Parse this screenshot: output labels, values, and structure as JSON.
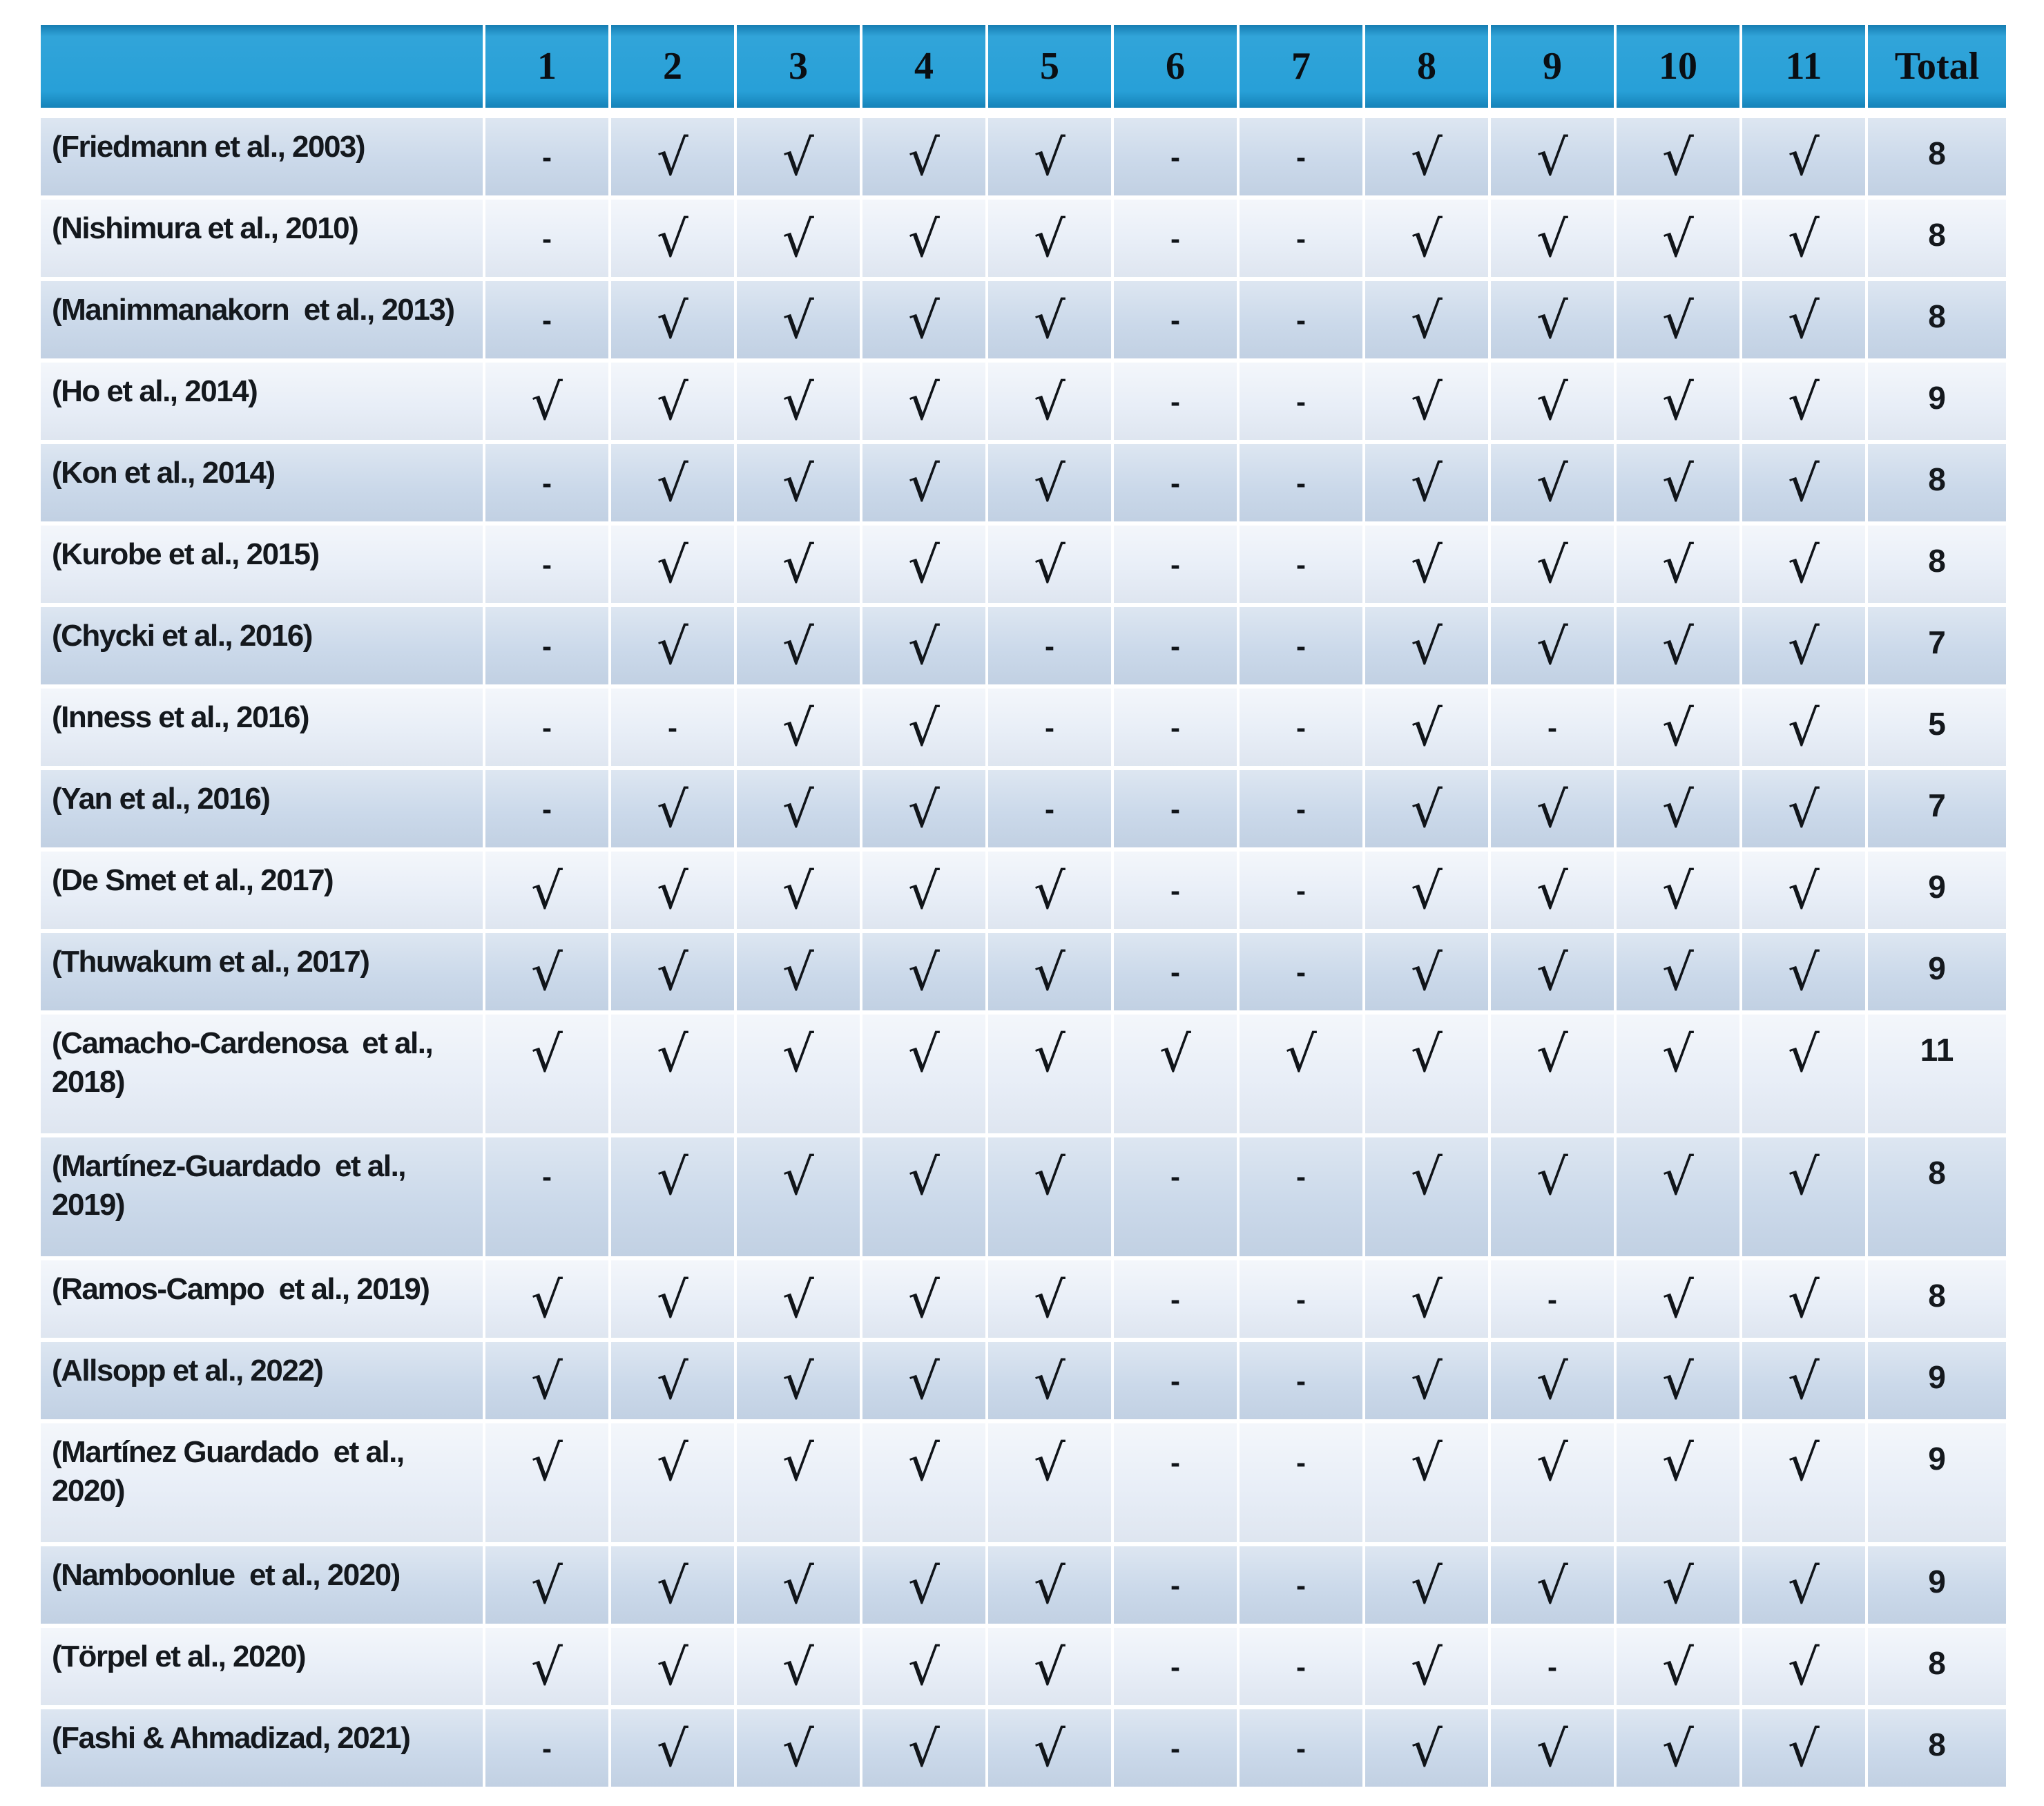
{
  "header": {
    "columns": [
      "",
      "1",
      "2",
      "3",
      "4",
      "5",
      "6",
      "7",
      "8",
      "9",
      "10",
      "11",
      "Total"
    ]
  },
  "symbols": {
    "check": "√",
    "dash": "-"
  },
  "colors": {
    "header_blue": "#1a9ad5",
    "row_dark": "#cbd9ea",
    "row_light": "#e8eef7",
    "grid_white": "#ffffff",
    "ink": "#14181d"
  },
  "rows": [
    {
      "label": "(Friedmann et al., 2003)",
      "cells": [
        "-",
        "√",
        "√",
        "√",
        "√",
        "-",
        "-",
        "√",
        "√",
        "√",
        "√"
      ],
      "total": "8"
    },
    {
      "label": "(Nishimura et al., 2010)",
      "cells": [
        "-",
        "√",
        "√",
        "√",
        "√",
        "-",
        "-",
        "√",
        "√",
        "√",
        "√"
      ],
      "total": "8"
    },
    {
      "label": "(Manimmanakorn  et al., 2013)",
      "cells": [
        "-",
        "√",
        "√",
        "√",
        "√",
        "-",
        "-",
        "√",
        "√",
        "√",
        "√"
      ],
      "total": "8"
    },
    {
      "label": "(Ho et al., 2014)",
      "cells": [
        "√",
        "√",
        "√",
        "√",
        "√",
        "-",
        "-",
        "√",
        "√",
        "√",
        "√"
      ],
      "total": "9"
    },
    {
      "label": "(Kon et al., 2014)",
      "cells": [
        "-",
        "√",
        "√",
        "√",
        "√",
        "-",
        "-",
        "√",
        "√",
        "√",
        "√"
      ],
      "total": "8"
    },
    {
      "label": "(Kurobe et al., 2015)",
      "cells": [
        "-",
        "√",
        "√",
        "√",
        "√",
        "-",
        "-",
        "√",
        "√",
        "√",
        "√"
      ],
      "total": "8"
    },
    {
      "label": "(Chycki et al., 2016)",
      "cells": [
        "-",
        "√",
        "√",
        "√",
        "-",
        "-",
        "-",
        "√",
        "√",
        "√",
        "√"
      ],
      "total": "7"
    },
    {
      "label": "(Inness et al., 2016)",
      "cells": [
        "-",
        "-",
        "√",
        "√",
        "-",
        "-",
        "-",
        "√",
        "-",
        "√",
        "√"
      ],
      "total": "5"
    },
    {
      "label": "(Yan et al., 2016)",
      "cells": [
        "-",
        "√",
        "√",
        "√",
        "-",
        "-",
        "-",
        "√",
        "√",
        "√",
        "√"
      ],
      "total": "7"
    },
    {
      "label": "(De Smet et al., 2017)",
      "cells": [
        "√",
        "√",
        "√",
        "√",
        "√",
        "-",
        "-",
        "√",
        "√",
        "√",
        "√"
      ],
      "total": "9"
    },
    {
      "label": "(Thuwakum et al., 2017)",
      "cells": [
        "√",
        "√",
        "√",
        "√",
        "√",
        "-",
        "-",
        "√",
        "√",
        "√",
        "√"
      ],
      "total": "9"
    },
    {
      "label": "(Camacho-Cardenosa  et al., 2018)",
      "cells": [
        "√",
        "√",
        "√",
        "√",
        "√",
        "√",
        "√",
        "√",
        "√",
        "√",
        "√"
      ],
      "total": "11"
    },
    {
      "label": "(Martínez-Guardado  et al., 2019)",
      "cells": [
        "-",
        "√",
        "√",
        "√",
        "√",
        "-",
        "-",
        "√",
        "√",
        "√",
        "√"
      ],
      "total": "8"
    },
    {
      "label": "(Ramos-Campo  et al., 2019)",
      "cells": [
        "√",
        "√",
        "√",
        "√",
        "√",
        "-",
        "-",
        "√",
        "-",
        "√",
        "√"
      ],
      "total": "8"
    },
    {
      "label": "(Allsopp et al., 2022)",
      "cells": [
        "√",
        "√",
        "√",
        "√",
        "√",
        "-",
        "-",
        "√",
        "√",
        "√",
        "√"
      ],
      "total": "9"
    },
    {
      "label": "(Martínez Guardado  et al., 2020)",
      "cells": [
        "√",
        "√",
        "√",
        "√",
        "√",
        "-",
        "-",
        "√",
        "√",
        "√",
        "√"
      ],
      "total": "9"
    },
    {
      "label": "(Namboonlue  et al., 2020)",
      "cells": [
        "√",
        "√",
        "√",
        "√",
        "√",
        "-",
        "-",
        "√",
        "√",
        "√",
        "√"
      ],
      "total": "9"
    },
    {
      "label": "(Törpel et al., 2020)",
      "cells": [
        "√",
        "√",
        "√",
        "√",
        "√",
        "-",
        "-",
        "√",
        "-",
        "√",
        "√"
      ],
      "total": "8"
    },
    {
      "label": "(Fashi & Ahmadizad, 2021)",
      "cells": [
        "-",
        "√",
        "√",
        "√",
        "√",
        "-",
        "-",
        "√",
        "√",
        "√",
        "√"
      ],
      "total": "8"
    }
  ]
}
